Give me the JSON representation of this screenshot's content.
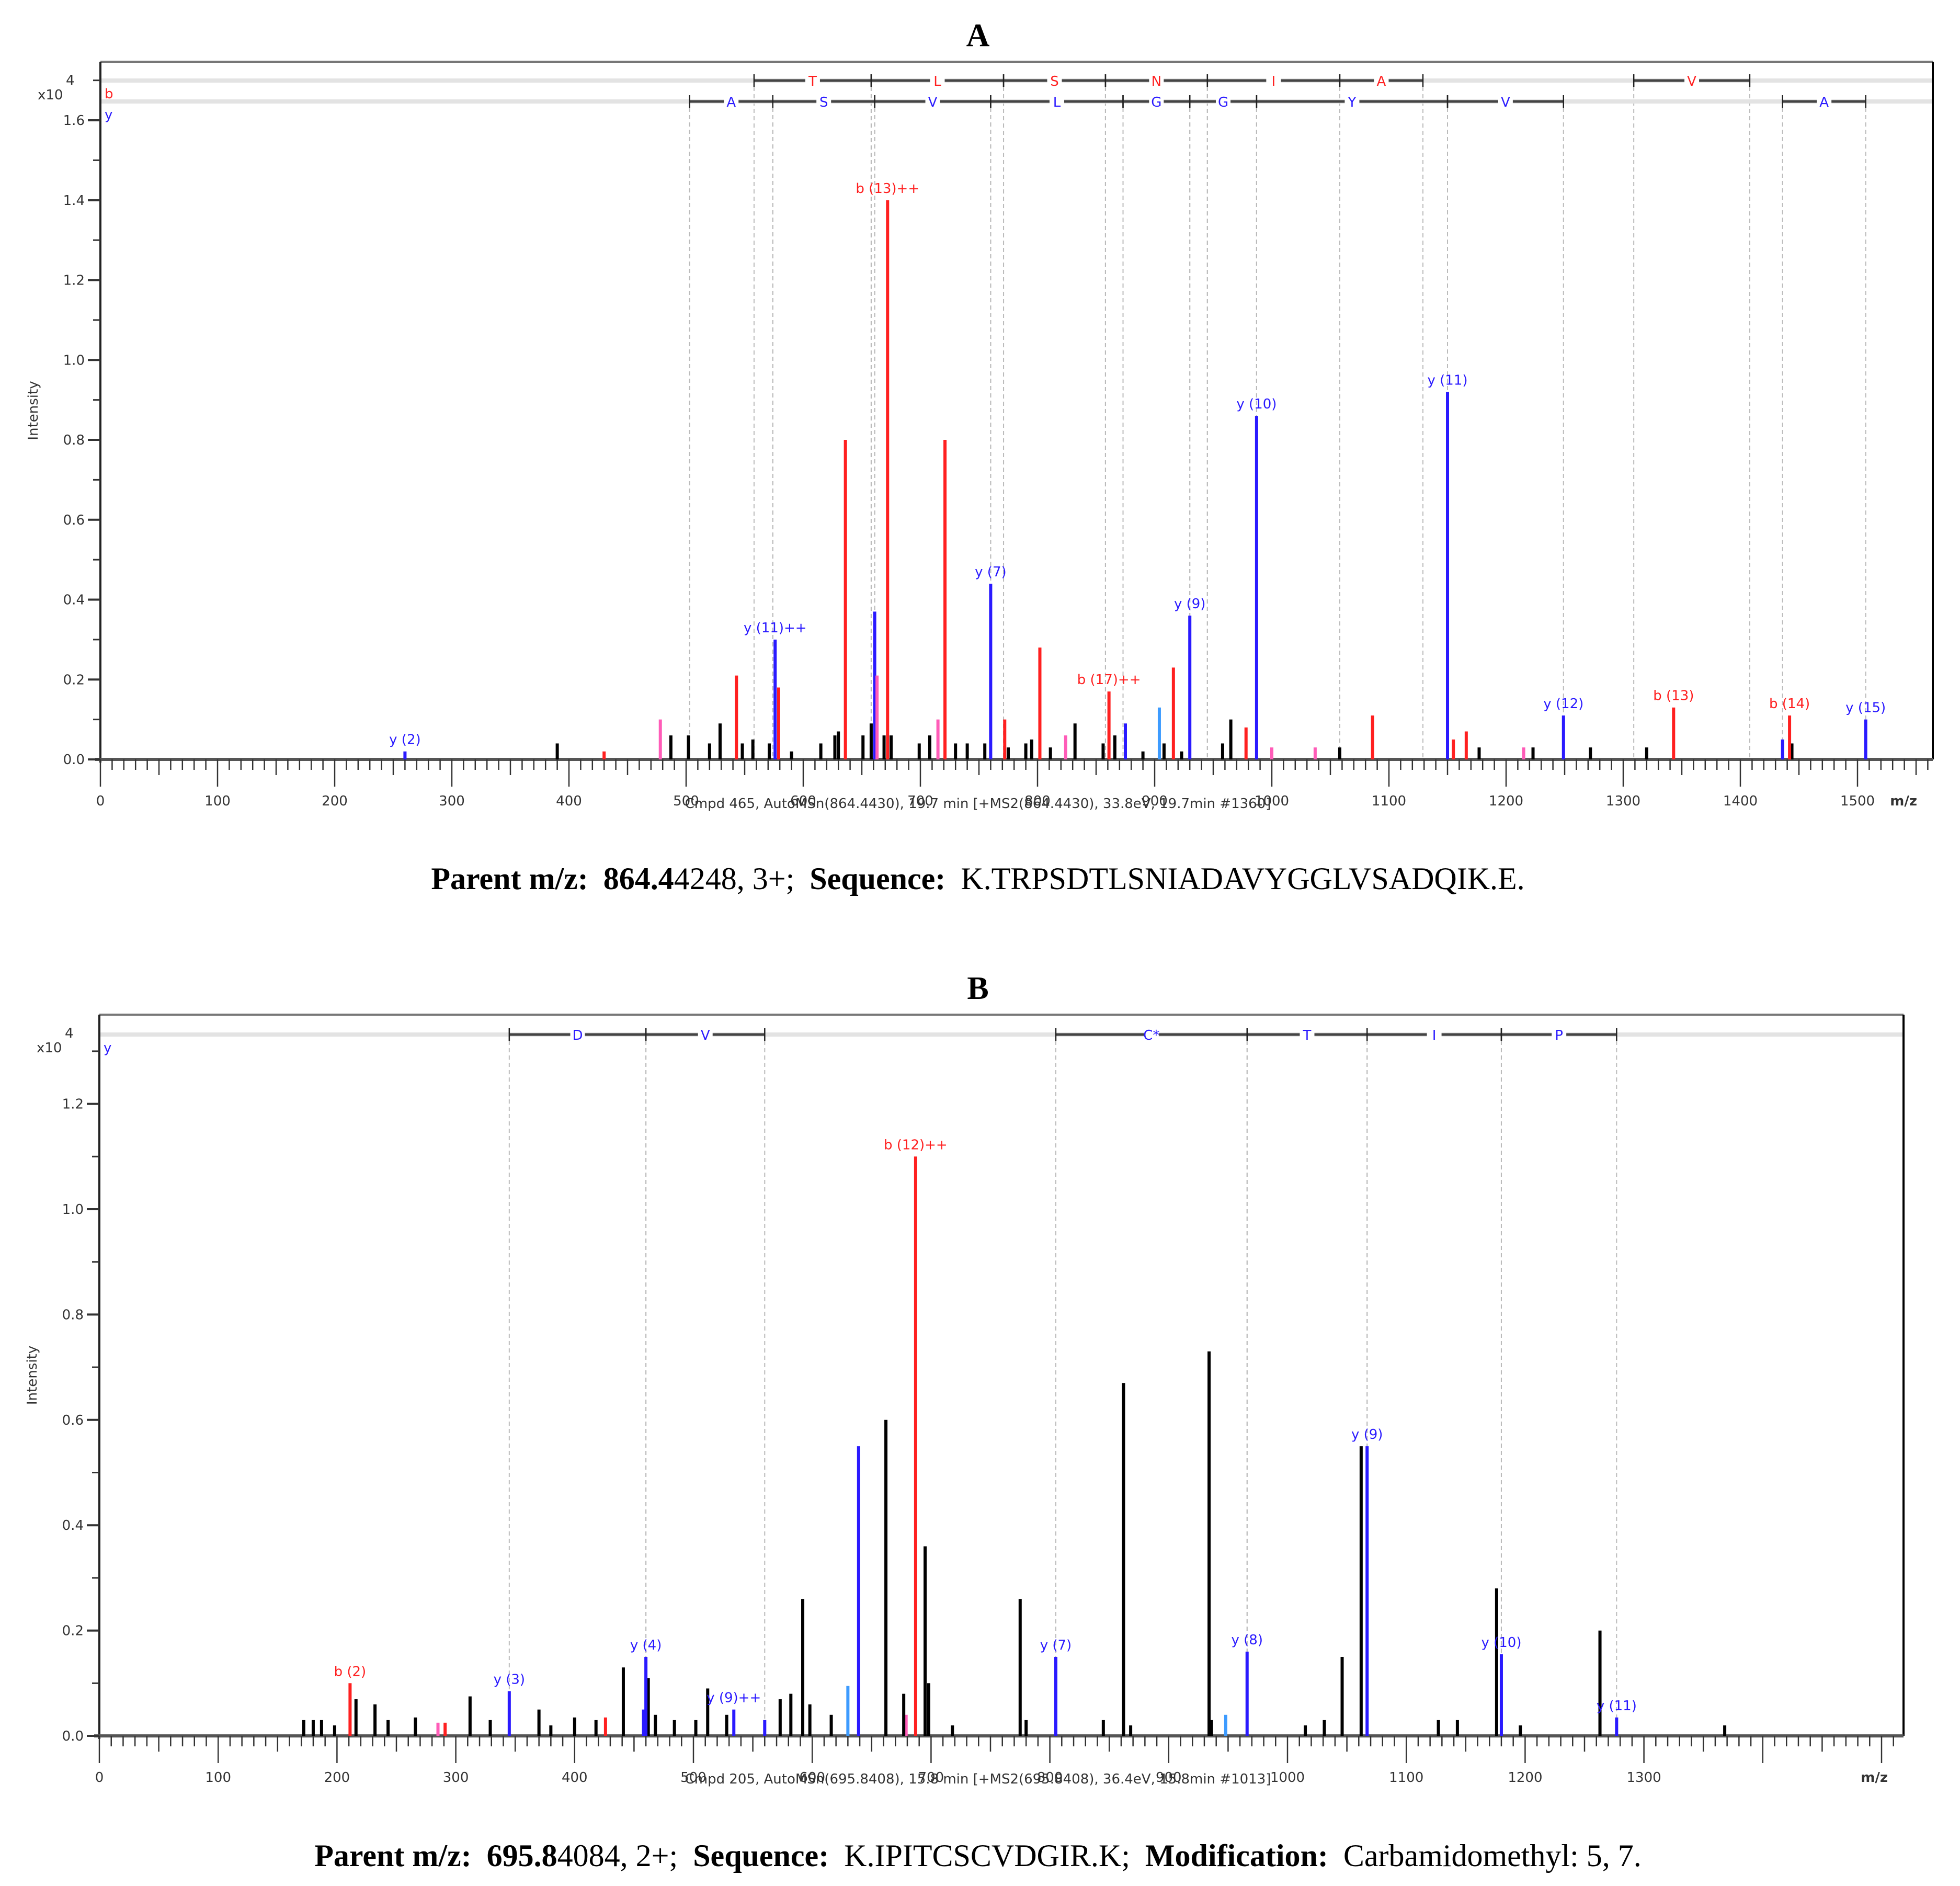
{
  "colors": {
    "b_ion": "#ff2020",
    "y_ion": "#2a1aff",
    "other": "#000000",
    "pink": "#ff5cb8",
    "lightblue": "#3d9bff",
    "ladder": "#555555",
    "dash": "#bbbbbb"
  },
  "panels": [
    {
      "id": "A",
      "title": "A",
      "exponent_label": "x10",
      "exponent": "4",
      "ylabel": "Intensity",
      "xlabel": "m/z",
      "footer": "Cmpd 465, AutoMSn(864.4430), 19.7 min [+MS2(864.4430), 33.8eV, 19.7min #1360]",
      "caption": {
        "parent_label": "Parent m/z:",
        "parent_bold": "864.4",
        "parent_rest": "4248, 3+;",
        "seq_label": "Sequence:",
        "seq": "K.TRPSDTLSNIADAVYGGLVSADQIK.E."
      },
      "series_labels": {
        "b": "b",
        "y": "y"
      }
    },
    {
      "id": "B",
      "title": "B",
      "exponent_label": "x10",
      "exponent": "4",
      "ylabel": "Intensity",
      "xlabel": "m/z",
      "footer": "Cmpd 205, AutoMSn(695.8408), 15.8 min [+MS2(695.8408), 36.4eV, 15.8min #1013]",
      "caption": {
        "parent_label": "Parent m/z:",
        "parent_bold": "695.8",
        "parent_rest": "4084, 2+;",
        "seq_label": "Sequence:",
        "seq": "K.IPITCSCVDGIR.K;",
        "mod_label": "Modification:",
        "mod": "Carbamidomethyl: 5, 7."
      },
      "series_labels": {
        "y": "y"
      }
    }
  ],
  "chart_data": [
    {
      "type": "bar",
      "title": "A",
      "subtitle": "Cmpd 465, AutoMSn(864.4430), 19.7 min [+MS2(864.4430), 33.8eV, 19.7min #1360]",
      "xlabel": "m/z",
      "ylabel": "Intensity (x10^4)",
      "xlim": [
        0,
        1550
      ],
      "ylim": [
        0,
        1.7
      ],
      "xticks": [
        0,
        100,
        200,
        300,
        400,
        500,
        600,
        700,
        800,
        900,
        1000,
        1100,
        1200,
        1300,
        1400,
        1500
      ],
      "yticks": [
        0.0,
        0.2,
        0.4,
        0.6,
        0.8,
        1.0,
        1.2,
        1.4,
        1.6
      ],
      "grid": false,
      "b_ladder": {
        "residues": [
          "T",
          "L",
          "S",
          "N",
          "I",
          "A",
          "V"
        ],
        "bounds": [
          [
            558,
            658
          ],
          [
            658,
            771
          ],
          [
            771,
            858
          ],
          [
            858,
            945
          ],
          [
            945,
            1058
          ],
          [
            1058,
            1129
          ],
          [
            1309,
            1408
          ]
        ]
      },
      "y_ladder": {
        "residues": [
          "A",
          "S",
          "V",
          "L",
          "G",
          "G",
          "Y",
          "V",
          "A"
        ],
        "bounds": [
          [
            503,
            574
          ],
          [
            574,
            661
          ],
          [
            661,
            760
          ],
          [
            760,
            873
          ],
          [
            873,
            930
          ],
          [
            930,
            987
          ],
          [
            987,
            1150
          ],
          [
            1150,
            1249
          ],
          [
            1436,
            1507
          ]
        ]
      },
      "annotated_peaks": [
        {
          "label": "y (2)",
          "mz": 260,
          "intensity": 0.02,
          "ion": "y"
        },
        {
          "label": "y (11)++",
          "mz": 576,
          "intensity": 0.3,
          "ion": "y"
        },
        {
          "label": "b (13)++",
          "mz": 672,
          "intensity": 1.4,
          "ion": "b"
        },
        {
          "label": "y (7)",
          "mz": 760,
          "intensity": 0.44,
          "ion": "y"
        },
        {
          "label": "b (17)++",
          "mz": 861,
          "intensity": 0.17,
          "ion": "b"
        },
        {
          "label": "y (9)",
          "mz": 930,
          "intensity": 0.36,
          "ion": "y"
        },
        {
          "label": "y (10)",
          "mz": 987,
          "intensity": 0.86,
          "ion": "y"
        },
        {
          "label": "y (11)",
          "mz": 1150,
          "intensity": 0.92,
          "ion": "y"
        },
        {
          "label": "y (12)",
          "mz": 1249,
          "intensity": 0.11,
          "ion": "y"
        },
        {
          "label": "b (13)",
          "mz": 1343,
          "intensity": 0.13,
          "ion": "b"
        },
        {
          "label": "b (14)",
          "mz": 1442,
          "intensity": 0.11,
          "ion": "b"
        },
        {
          "label": "y (15)",
          "mz": 1507,
          "intensity": 0.1,
          "ion": "y"
        }
      ],
      "other_peaks": [
        {
          "mz": 543,
          "intensity": 0.21,
          "ion": "b"
        },
        {
          "mz": 579,
          "intensity": 0.18,
          "ion": "b"
        },
        {
          "mz": 636,
          "intensity": 0.8,
          "ion": "b"
        },
        {
          "mz": 721,
          "intensity": 0.8,
          "ion": "b"
        },
        {
          "mz": 661,
          "intensity": 0.37,
          "ion": "y"
        },
        {
          "mz": 802,
          "intensity": 0.28,
          "ion": "b"
        },
        {
          "mz": 916,
          "intensity": 0.23,
          "ion": "b"
        },
        {
          "mz": 1086,
          "intensity": 0.11,
          "ion": "b"
        },
        {
          "mz": 772,
          "intensity": 0.1,
          "ion": "b"
        },
        {
          "mz": 1166,
          "intensity": 0.07,
          "ion": "b"
        },
        {
          "mz": 978,
          "intensity": 0.08,
          "ion": "b"
        },
        {
          "mz": 430,
          "intensity": 0.02,
          "ion": "b"
        },
        {
          "mz": 1155,
          "intensity": 0.05,
          "ion": "b"
        },
        {
          "mz": 875,
          "intensity": 0.09,
          "ion": "y"
        },
        {
          "mz": 1436,
          "intensity": 0.05,
          "ion": "y"
        },
        {
          "mz": 904,
          "intensity": 0.13,
          "ion": "lightblue"
        },
        {
          "mz": 478,
          "intensity": 0.1,
          "ion": "pink"
        },
        {
          "mz": 663,
          "intensity": 0.21,
          "ion": "pink"
        },
        {
          "mz": 715,
          "intensity": 0.1,
          "ion": "pink"
        },
        {
          "mz": 824,
          "intensity": 0.06,
          "ion": "pink"
        },
        {
          "mz": 1000,
          "intensity": 0.03,
          "ion": "pink"
        },
        {
          "mz": 1037,
          "intensity": 0.03,
          "ion": "pink"
        },
        {
          "mz": 1215,
          "intensity": 0.03,
          "ion": "pink"
        },
        {
          "mz": 390,
          "intensity": 0.04,
          "ion": "other"
        },
        {
          "mz": 487,
          "intensity": 0.06,
          "ion": "other"
        },
        {
          "mz": 502,
          "intensity": 0.06,
          "ion": "other"
        },
        {
          "mz": 520,
          "intensity": 0.04,
          "ion": "other"
        },
        {
          "mz": 529,
          "intensity": 0.09,
          "ion": "other"
        },
        {
          "mz": 548,
          "intensity": 0.04,
          "ion": "other"
        },
        {
          "mz": 557,
          "intensity": 0.05,
          "ion": "other"
        },
        {
          "mz": 571,
          "intensity": 0.04,
          "ion": "other"
        },
        {
          "mz": 590,
          "intensity": 0.02,
          "ion": "other"
        },
        {
          "mz": 615,
          "intensity": 0.04,
          "ion": "other"
        },
        {
          "mz": 627,
          "intensity": 0.06,
          "ion": "other"
        },
        {
          "mz": 630,
          "intensity": 0.07,
          "ion": "other"
        },
        {
          "mz": 651,
          "intensity": 0.06,
          "ion": "other"
        },
        {
          "mz": 658,
          "intensity": 0.09,
          "ion": "other"
        },
        {
          "mz": 669,
          "intensity": 0.06,
          "ion": "other"
        },
        {
          "mz": 675,
          "intensity": 0.06,
          "ion": "other"
        },
        {
          "mz": 699,
          "intensity": 0.04,
          "ion": "other"
        },
        {
          "mz": 708,
          "intensity": 0.06,
          "ion": "other"
        },
        {
          "mz": 730,
          "intensity": 0.04,
          "ion": "other"
        },
        {
          "mz": 740,
          "intensity": 0.04,
          "ion": "other"
        },
        {
          "mz": 755,
          "intensity": 0.04,
          "ion": "other"
        },
        {
          "mz": 775,
          "intensity": 0.03,
          "ion": "other"
        },
        {
          "mz": 790,
          "intensity": 0.04,
          "ion": "other"
        },
        {
          "mz": 795,
          "intensity": 0.05,
          "ion": "other"
        },
        {
          "mz": 811,
          "intensity": 0.03,
          "ion": "other"
        },
        {
          "mz": 832,
          "intensity": 0.09,
          "ion": "other"
        },
        {
          "mz": 856,
          "intensity": 0.04,
          "ion": "other"
        },
        {
          "mz": 866,
          "intensity": 0.06,
          "ion": "other"
        },
        {
          "mz": 890,
          "intensity": 0.02,
          "ion": "other"
        },
        {
          "mz": 908,
          "intensity": 0.04,
          "ion": "other"
        },
        {
          "mz": 923,
          "intensity": 0.02,
          "ion": "other"
        },
        {
          "mz": 958,
          "intensity": 0.04,
          "ion": "other"
        },
        {
          "mz": 965,
          "intensity": 0.1,
          "ion": "other"
        },
        {
          "mz": 1058,
          "intensity": 0.03,
          "ion": "other"
        },
        {
          "mz": 1177,
          "intensity": 0.03,
          "ion": "other"
        },
        {
          "mz": 1223,
          "intensity": 0.03,
          "ion": "other"
        },
        {
          "mz": 1272,
          "intensity": 0.03,
          "ion": "other"
        },
        {
          "mz": 1320,
          "intensity": 0.03,
          "ion": "other"
        },
        {
          "mz": 1444,
          "intensity": 0.04,
          "ion": "other"
        }
      ]
    },
    {
      "type": "bar",
      "title": "B",
      "subtitle": "Cmpd 205, AutoMSn(695.8408), 15.8 min [+MS2(695.8408), 36.4eV, 15.8min #1013]",
      "xlabel": "m/z",
      "ylabel": "Intensity (x10^4)",
      "xlim": [
        0,
        1410
      ],
      "ylim": [
        0,
        1.35
      ],
      "xticks": [
        0,
        100,
        200,
        300,
        400,
        500,
        600,
        700,
        800,
        900,
        1000,
        1100,
        1200,
        1300
      ],
      "yticks": [
        0.0,
        0.2,
        0.4,
        0.6,
        0.8,
        1.0,
        1.2
      ],
      "grid": false,
      "y_ladder": {
        "residues": [
          "D",
          "V",
          "C*",
          "T",
          "I",
          "P"
        ],
        "bounds": [
          [
            345,
            460
          ],
          [
            460,
            560
          ],
          [
            805,
            966
          ],
          [
            966,
            1067
          ],
          [
            1067,
            1180
          ],
          [
            1180,
            1277
          ]
        ]
      },
      "annotated_peaks": [
        {
          "label": "b (2)",
          "mz": 211,
          "intensity": 0.1,
          "ion": "b"
        },
        {
          "label": "y (3)",
          "mz": 345,
          "intensity": 0.085,
          "ion": "y"
        },
        {
          "label": "y (4)",
          "mz": 460,
          "intensity": 0.15,
          "ion": "y"
        },
        {
          "label": "y (9)++",
          "mz": 534,
          "intensity": 0.05,
          "ion": "y"
        },
        {
          "label": "b (12)++",
          "mz": 687,
          "intensity": 1.1,
          "ion": "b"
        },
        {
          "label": "y (7)",
          "mz": 805,
          "intensity": 0.15,
          "ion": "y"
        },
        {
          "label": "y (8)",
          "mz": 966,
          "intensity": 0.16,
          "ion": "y"
        },
        {
          "label": "y (9)",
          "mz": 1067,
          "intensity": 0.55,
          "ion": "y"
        },
        {
          "label": "y (10)",
          "mz": 1180,
          "intensity": 0.155,
          "ion": "y"
        },
        {
          "label": "y (11)",
          "mz": 1277,
          "intensity": 0.035,
          "ion": "y"
        }
      ],
      "other_peaks": [
        {
          "mz": 639,
          "intensity": 0.55,
          "ion": "y"
        },
        {
          "mz": 458,
          "intensity": 0.05,
          "ion": "y"
        },
        {
          "mz": 560,
          "intensity": 0.03,
          "ion": "y"
        },
        {
          "mz": 630,
          "intensity": 0.095,
          "ion": "lightblue"
        },
        {
          "mz": 948,
          "intensity": 0.04,
          "ion": "lightblue"
        },
        {
          "mz": 285,
          "intensity": 0.025,
          "ion": "pink"
        },
        {
          "mz": 679,
          "intensity": 0.04,
          "ion": "pink"
        },
        {
          "mz": 426,
          "intensity": 0.035,
          "ion": "b"
        },
        {
          "mz": 291,
          "intensity": 0.025,
          "ion": "b"
        },
        {
          "mz": 172,
          "intensity": 0.03,
          "ion": "other"
        },
        {
          "mz": 180,
          "intensity": 0.03,
          "ion": "other"
        },
        {
          "mz": 187,
          "intensity": 0.03,
          "ion": "other"
        },
        {
          "mz": 198,
          "intensity": 0.02,
          "ion": "other"
        },
        {
          "mz": 216,
          "intensity": 0.07,
          "ion": "other"
        },
        {
          "mz": 232,
          "intensity": 0.06,
          "ion": "other"
        },
        {
          "mz": 243,
          "intensity": 0.03,
          "ion": "other"
        },
        {
          "mz": 266,
          "intensity": 0.035,
          "ion": "other"
        },
        {
          "mz": 312,
          "intensity": 0.075,
          "ion": "other"
        },
        {
          "mz": 329,
          "intensity": 0.03,
          "ion": "other"
        },
        {
          "mz": 370,
          "intensity": 0.05,
          "ion": "other"
        },
        {
          "mz": 380,
          "intensity": 0.02,
          "ion": "other"
        },
        {
          "mz": 400,
          "intensity": 0.035,
          "ion": "other"
        },
        {
          "mz": 418,
          "intensity": 0.03,
          "ion": "other"
        },
        {
          "mz": 441,
          "intensity": 0.13,
          "ion": "other"
        },
        {
          "mz": 462,
          "intensity": 0.11,
          "ion": "other"
        },
        {
          "mz": 468,
          "intensity": 0.04,
          "ion": "other"
        },
        {
          "mz": 484,
          "intensity": 0.03,
          "ion": "other"
        },
        {
          "mz": 502,
          "intensity": 0.03,
          "ion": "other"
        },
        {
          "mz": 512,
          "intensity": 0.09,
          "ion": "other"
        },
        {
          "mz": 528,
          "intensity": 0.04,
          "ion": "other"
        },
        {
          "mz": 573,
          "intensity": 0.07,
          "ion": "other"
        },
        {
          "mz": 582,
          "intensity": 0.08,
          "ion": "other"
        },
        {
          "mz": 592,
          "intensity": 0.26,
          "ion": "other"
        },
        {
          "mz": 598,
          "intensity": 0.06,
          "ion": "other"
        },
        {
          "mz": 616,
          "intensity": 0.04,
          "ion": "other"
        },
        {
          "mz": 662,
          "intensity": 0.6,
          "ion": "other"
        },
        {
          "mz": 677,
          "intensity": 0.08,
          "ion": "other"
        },
        {
          "mz": 695,
          "intensity": 0.36,
          "ion": "other"
        },
        {
          "mz": 698,
          "intensity": 0.1,
          "ion": "other"
        },
        {
          "mz": 718,
          "intensity": 0.02,
          "ion": "other"
        },
        {
          "mz": 775,
          "intensity": 0.26,
          "ion": "other"
        },
        {
          "mz": 780,
          "intensity": 0.03,
          "ion": "other"
        },
        {
          "mz": 845,
          "intensity": 0.03,
          "ion": "other"
        },
        {
          "mz": 862,
          "intensity": 0.67,
          "ion": "other"
        },
        {
          "mz": 868,
          "intensity": 0.02,
          "ion": "other"
        },
        {
          "mz": 934,
          "intensity": 0.73,
          "ion": "other"
        },
        {
          "mz": 936,
          "intensity": 0.03,
          "ion": "other"
        },
        {
          "mz": 1015,
          "intensity": 0.02,
          "ion": "other"
        },
        {
          "mz": 1031,
          "intensity": 0.03,
          "ion": "other"
        },
        {
          "mz": 1046,
          "intensity": 0.15,
          "ion": "other"
        },
        {
          "mz": 1062,
          "intensity": 0.55,
          "ion": "other"
        },
        {
          "mz": 1127,
          "intensity": 0.03,
          "ion": "other"
        },
        {
          "mz": 1143,
          "intensity": 0.03,
          "ion": "other"
        },
        {
          "mz": 1176,
          "intensity": 0.28,
          "ion": "other"
        },
        {
          "mz": 1196,
          "intensity": 0.02,
          "ion": "other"
        },
        {
          "mz": 1263,
          "intensity": 0.2,
          "ion": "other"
        },
        {
          "mz": 1368,
          "intensity": 0.02,
          "ion": "other"
        }
      ]
    }
  ]
}
